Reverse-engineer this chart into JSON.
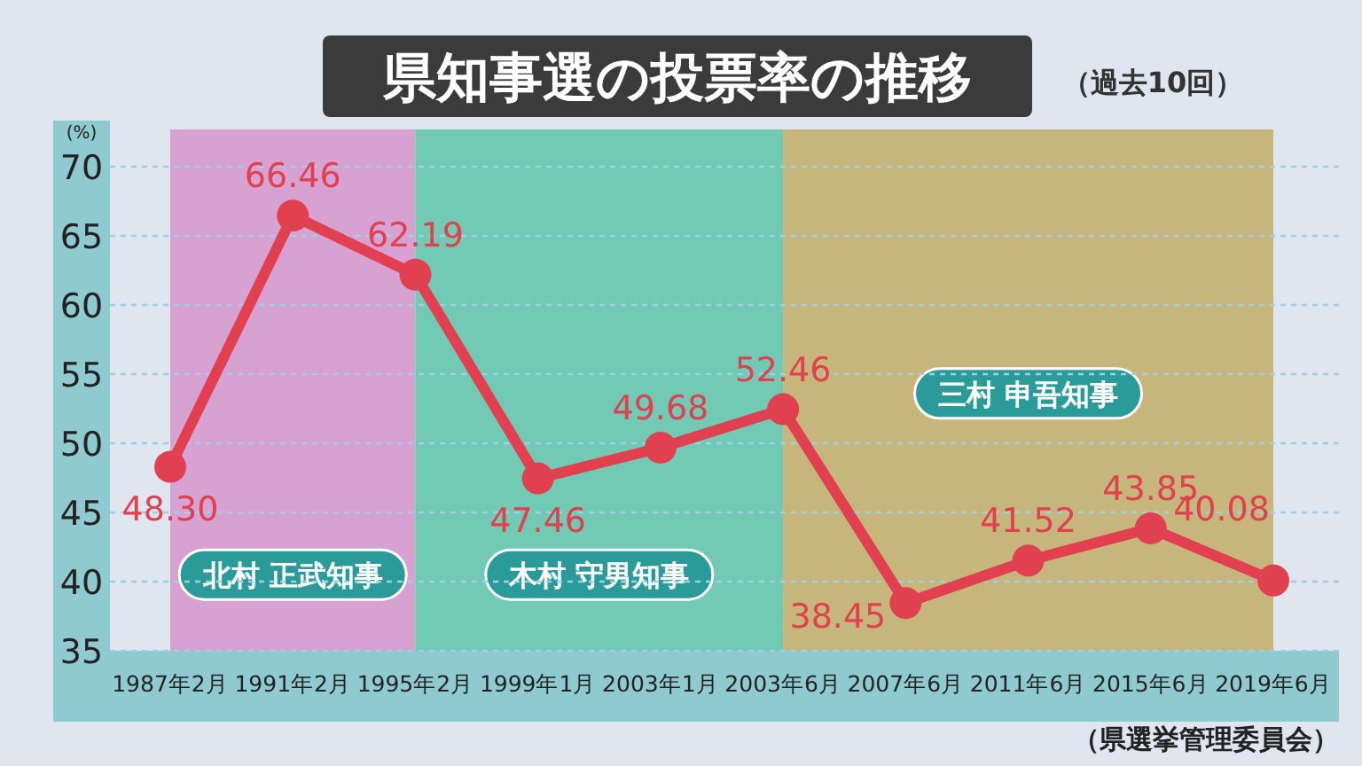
{
  "chart_data": {
    "type": "line",
    "title": "県知事選の投票率の推移",
    "subtitle": "（過去10回）",
    "ylabel": "(%)",
    "categories": [
      "1987年2月",
      "1991年2月",
      "1995年2月",
      "1999年1月",
      "2003年1月",
      "2003年6月",
      "2007年6月",
      "2011年6月",
      "2015年6月",
      "2019年6月"
    ],
    "series": [
      {
        "color": "#e0404f",
        "values": [
          48.3,
          66.46,
          62.19,
          47.46,
          49.68,
          52.46,
          38.45,
          41.52,
          43.85,
          40.08
        ],
        "value_labels": [
          "48.30",
          "66.46",
          "62.19",
          "47.46",
          "49.68",
          "52.46",
          "38.45",
          "41.52",
          "43.85",
          "40.08"
        ]
      }
    ],
    "ylim": [
      35,
      70
    ],
    "yticks": [
      35,
      40,
      45,
      50,
      55,
      60,
      65,
      70
    ],
    "grid": "y",
    "marker": "circle",
    "bands": [
      {
        "axis": "x",
        "from": "1987年2月",
        "to": "1995年2月",
        "label": "北村 正武知事",
        "color": "#d7a2d2"
      },
      {
        "axis": "x",
        "from": "1995年2月",
        "to": "2003年6月",
        "label": "木村 守男知事",
        "color": "#72c9b4"
      },
      {
        "axis": "x",
        "from": "2003年6月",
        "to": "2019年6月",
        "label": "三村 申吾知事",
        "color": "#c6b67c"
      }
    ],
    "annotations": [
      "（県選挙管理委員会）"
    ]
  }
}
